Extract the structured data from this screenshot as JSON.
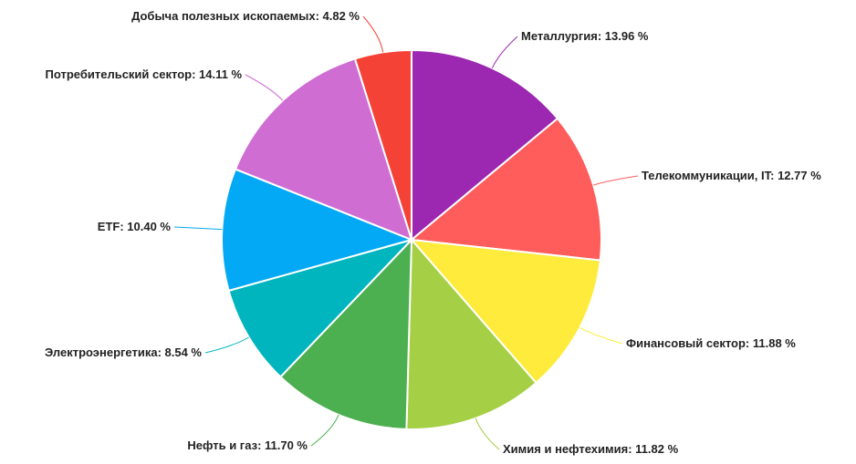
{
  "chart_data": {
    "type": "pie",
    "title": "",
    "legend": "none",
    "unit_suffix": " %",
    "slices": [
      {
        "label": "Металлургия",
        "value": 13.96,
        "value_text": "13.96",
        "color": "#9c27b0"
      },
      {
        "label": "Телекоммуникации, IT",
        "value": 12.77,
        "value_text": "12.77",
        "color": "#ff5c5c"
      },
      {
        "label": "Финансовый сектор",
        "value": 11.88,
        "value_text": "11.88",
        "color": "#ffeb3b"
      },
      {
        "label": "Химия и нефтехимия",
        "value": 11.82,
        "value_text": "11.82",
        "color": "#a5cf45"
      },
      {
        "label": "Нефть и газ",
        "value": 11.7,
        "value_text": "11.70",
        "color": "#4caf50"
      },
      {
        "label": "Электроэнергетика",
        "value": 8.54,
        "value_text": "8.54",
        "color": "#00b5bd"
      },
      {
        "label": "ETF",
        "value": 10.4,
        "value_text": "10.40",
        "color": "#03a9f4"
      },
      {
        "label": "Потребительский сектор",
        "value": 14.11,
        "value_text": "14.11",
        "color": "#cf6dd3"
      },
      {
        "label": "Добыча полезных ископаемых",
        "value": 4.82,
        "value_text": "4.82",
        "color": "#f44336"
      }
    ]
  }
}
